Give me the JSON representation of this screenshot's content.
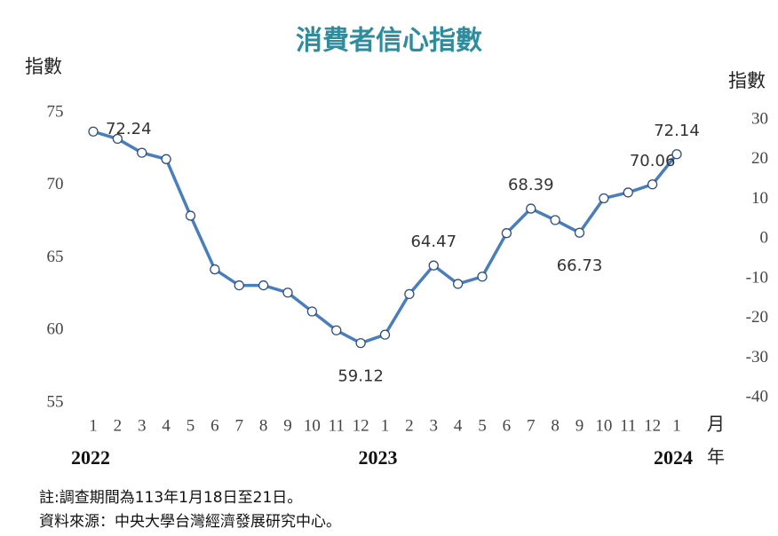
{
  "chart_data": {
    "type": "line",
    "title": "消費者信心指數",
    "y_label": "指數",
    "y2_label": "指數",
    "x_unit": "月",
    "year_unit": "年",
    "categories": [
      "1",
      "2",
      "3",
      "4",
      "5",
      "6",
      "7",
      "8",
      "9",
      "10",
      "11",
      "12",
      "1",
      "2",
      "3",
      "4",
      "5",
      "6",
      "7",
      "8",
      "9",
      "10",
      "11",
      "12",
      "1"
    ],
    "year_groups": [
      {
        "label": "2022",
        "start": 0
      },
      {
        "label": "2023",
        "start": 12
      },
      {
        "label": "2024",
        "start": 24
      }
    ],
    "series": [
      {
        "name": "消費者信心指數",
        "color": "#4a7ebb",
        "values": [
          73.7,
          73.2,
          72.24,
          71.8,
          67.9,
          64.2,
          63.1,
          63.1,
          62.6,
          61.3,
          60.0,
          59.12,
          59.7,
          62.5,
          64.47,
          63.2,
          63.7,
          66.7,
          68.39,
          67.6,
          66.73,
          69.1,
          69.5,
          70.06,
          72.14
        ],
        "value_labels": [
          null,
          null,
          "72.24",
          null,
          null,
          null,
          null,
          null,
          null,
          null,
          null,
          "59.12",
          null,
          null,
          "64.47",
          null,
          null,
          null,
          "68.39",
          null,
          "66.73",
          null,
          null,
          "70.06",
          "72.14"
        ]
      }
    ],
    "ylim": [
      55,
      75
    ],
    "yticks": [
      55,
      60,
      65,
      70,
      75
    ],
    "y2lim": [
      -41.3,
      31.8
    ],
    "y2ticks": [
      -40,
      -30,
      -20,
      -10,
      0,
      10,
      20,
      30
    ],
    "notes": [
      "註:調查期間為113年1月18日至21日。",
      "資料來源：中央大學台灣經濟發展研究中心。"
    ]
  }
}
